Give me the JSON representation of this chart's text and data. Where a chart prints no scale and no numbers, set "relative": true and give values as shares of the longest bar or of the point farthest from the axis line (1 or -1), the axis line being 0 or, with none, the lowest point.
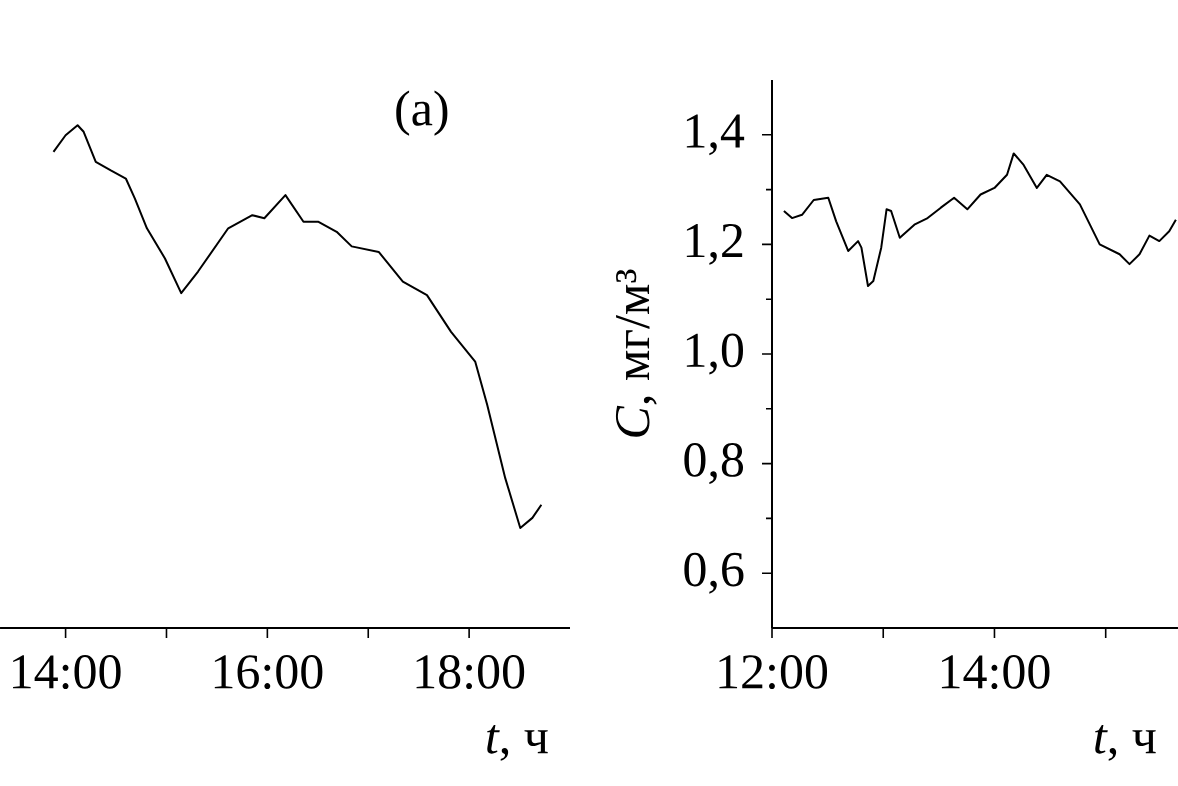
{
  "chart_data": [
    {
      "type": "line",
      "title": "(a)",
      "xlabel": "*t*, ч",
      "relative": true,
      "color": "#000000",
      "x": [
        13.88,
        14.0,
        14.119,
        14.179,
        14.299,
        14.448,
        14.597,
        14.687,
        14.806,
        14.985,
        15.146,
        15.313,
        15.612,
        15.851,
        15.97,
        16.179,
        16.358,
        16.507,
        16.687,
        16.836,
        17.104,
        17.343,
        17.582,
        17.821,
        18.06,
        18.179,
        18.358,
        18.507,
        18.627,
        18.716
      ],
      "values": [
        0.947,
        0.98,
        1.0,
        0.987,
        0.927,
        0.91,
        0.894,
        0.854,
        0.795,
        0.735,
        0.666,
        0.709,
        0.795,
        0.821,
        0.815,
        0.861,
        0.808,
        0.808,
        0.788,
        0.759,
        0.748,
        0.689,
        0.662,
        0.589,
        0.53,
        0.444,
        0.298,
        0.199,
        0.219,
        0.245
      ],
      "xlim": [
        13.35,
        19
      ],
      "xticks": [
        {
          "value": 14,
          "label": "14:00"
        },
        {
          "value": 15,
          "label": null
        },
        {
          "value": 16,
          "label": "16:00"
        },
        {
          "value": 17,
          "label": null
        },
        {
          "value": 18,
          "label": "18:00"
        }
      ]
    },
    {
      "type": "line",
      "xlabel": "*t*, ч",
      "ylabel": "*C*, мг/м³",
      "color": "#000000",
      "x": [
        12.107,
        12.18,
        12.27,
        12.375,
        12.506,
        12.577,
        12.685,
        12.774,
        12.804,
        12.863,
        12.911,
        12.982,
        13.03,
        13.071,
        13.149,
        13.28,
        13.399,
        13.518,
        13.637,
        13.756,
        13.875,
        14.0,
        14.113,
        14.173,
        14.262,
        14.381,
        14.47,
        14.589,
        14.768,
        14.946,
        15.125,
        15.214,
        15.304,
        15.393,
        15.482,
        15.571,
        15.631
      ],
      "values": [
        1.261,
        1.248,
        1.254,
        1.281,
        1.285,
        1.242,
        1.188,
        1.206,
        1.194,
        1.124,
        1.133,
        1.194,
        1.264,
        1.261,
        1.212,
        1.236,
        1.248,
        1.267,
        1.285,
        1.264,
        1.291,
        1.303,
        1.327,
        1.366,
        1.345,
        1.303,
        1.327,
        1.315,
        1.273,
        1.2,
        1.182,
        1.164,
        1.182,
        1.216,
        1.206,
        1.224,
        1.245
      ],
      "xlim": [
        12,
        15.65
      ],
      "ylim": [
        0.5,
        1.5
      ],
      "xticks": [
        {
          "value": 12,
          "label": "12:00"
        },
        {
          "value": 13,
          "label": null
        },
        {
          "value": 14,
          "label": "14:00"
        },
        {
          "value": 15,
          "label": null
        }
      ],
      "yticks": [
        {
          "value": 0.6,
          "label": "0,6"
        },
        {
          "value": 0.8,
          "label": "0,8"
        },
        {
          "value": 1.0,
          "label": "1,0"
        },
        {
          "value": 1.2,
          "label": "1,2"
        },
        {
          "value": 1.4,
          "label": "1,4"
        }
      ]
    }
  ]
}
